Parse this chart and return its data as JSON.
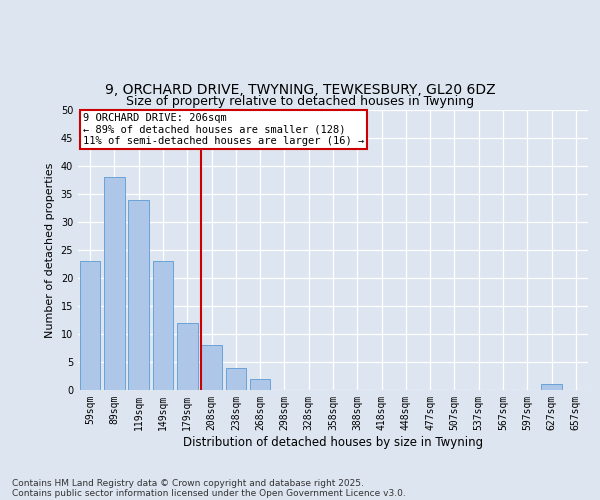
{
  "title_line1": "9, ORCHARD DRIVE, TWYNING, TEWKESBURY, GL20 6DZ",
  "title_line2": "Size of property relative to detached houses in Twyning",
  "xlabel": "Distribution of detached houses by size in Twyning",
  "ylabel": "Number of detached properties",
  "categories": [
    "59sqm",
    "89sqm",
    "119sqm",
    "149sqm",
    "179sqm",
    "208sqm",
    "238sqm",
    "268sqm",
    "298sqm",
    "328sqm",
    "358sqm",
    "388sqm",
    "418sqm",
    "448sqm",
    "477sqm",
    "507sqm",
    "537sqm",
    "567sqm",
    "597sqm",
    "627sqm",
    "657sqm"
  ],
  "values": [
    23,
    38,
    34,
    23,
    12,
    8,
    4,
    2,
    0,
    0,
    0,
    0,
    0,
    0,
    0,
    0,
    0,
    0,
    0,
    1,
    0
  ],
  "bar_color": "#aec6e8",
  "bar_edge_color": "#5b9bd5",
  "vline_x_index": 5,
  "vline_color": "#cc0000",
  "annotation_text": "9 ORCHARD DRIVE: 206sqm\n← 89% of detached houses are smaller (128)\n11% of semi-detached houses are larger (16) →",
  "annotation_box_color": "#ffffff",
  "annotation_box_edge_color": "#cc0000",
  "ylim": [
    0,
    50
  ],
  "yticks": [
    0,
    5,
    10,
    15,
    20,
    25,
    30,
    35,
    40,
    45,
    50
  ],
  "background_color": "#dde5f0",
  "plot_bg_color": "#dde5f0",
  "grid_color": "#ffffff",
  "footer_line1": "Contains HM Land Registry data © Crown copyright and database right 2025.",
  "footer_line2": "Contains public sector information licensed under the Open Government Licence v3.0.",
  "title_fontsize": 10,
  "subtitle_fontsize": 9,
  "tick_fontsize": 7,
  "ylabel_fontsize": 8,
  "xlabel_fontsize": 8.5,
  "footer_fontsize": 6.5,
  "annotation_fontsize": 7.5
}
